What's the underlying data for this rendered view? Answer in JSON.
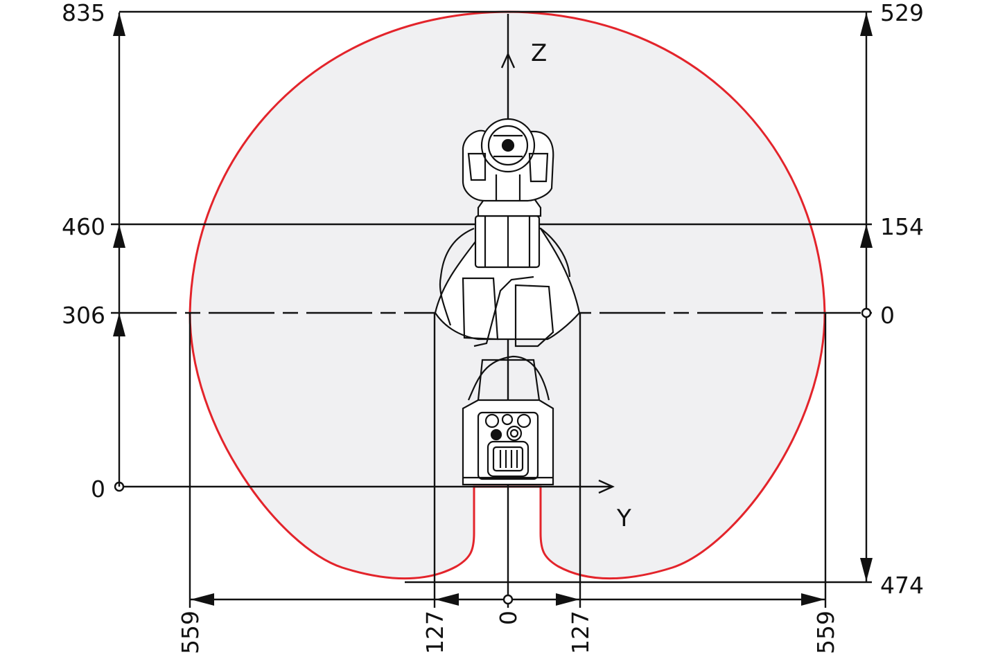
{
  "colors": {
    "envelope_stroke": "#e3242b",
    "envelope_fill": "#f0f0f2",
    "lines": "#111111",
    "background": "#ffffff"
  },
  "axes": {
    "z_label": "Z",
    "y_label": "Y"
  },
  "dimensions": {
    "left_z": [
      "835",
      "460",
      "306",
      "0"
    ],
    "right_z": [
      "529",
      "154",
      "0",
      "474"
    ],
    "bottom_y": [
      "559",
      "127",
      "0",
      "127",
      "559"
    ]
  },
  "robot_icon": "robot-arm-front-view-drawing"
}
